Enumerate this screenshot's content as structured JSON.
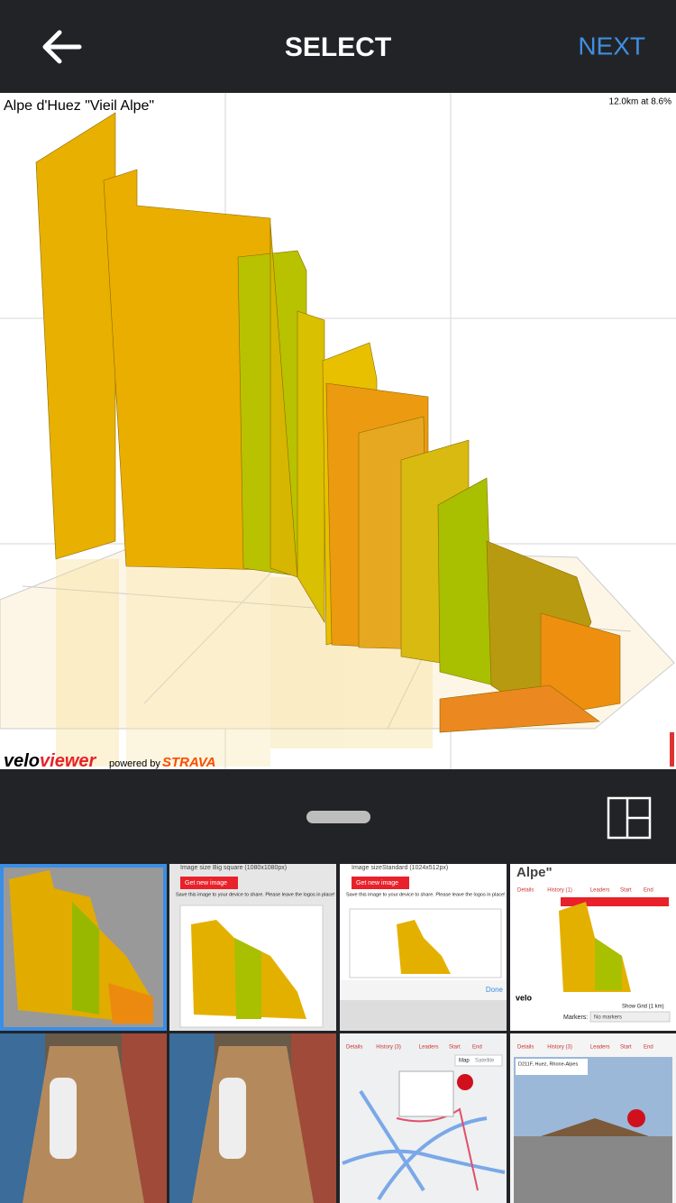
{
  "header": {
    "title": "SELECT",
    "next": "NEXT"
  },
  "preview": {
    "title": "Alpe d'Huez \"Vieil Alpe\"",
    "stats": "12.0km at 8.6%",
    "logo_velo": "velo",
    "logo_viewer": "viewer",
    "powered": "powered by",
    "strava": "STRAVA"
  },
  "thumbnails": {
    "t2": {
      "size_label": "Image size",
      "size_value": "Big square (1080x1080px)",
      "button": "Get new image",
      "note": "Save this image to your device to share. Please leave the logos in place!"
    },
    "t3": {
      "size_label": "Image size",
      "size_value": "Standard (1024x512px)",
      "button": "Get new image",
      "note": "Save this image to your device to share. Please leave the logos in place!",
      "done": "Done"
    },
    "t4": {
      "title": "Alpe\"",
      "tabs": [
        "Details",
        "History (1)",
        "Leaders",
        "Start",
        "End"
      ],
      "grid": "Show Grid (1 km)",
      "markers": "Markers:",
      "markers_value": "No markers"
    },
    "t7": {
      "tabs": [
        "Details",
        "History (3)",
        "Leaders",
        "Start",
        "End"
      ],
      "map": "Map",
      "satellite": "Satellite"
    },
    "t8": {
      "tabs": [
        "Details",
        "History (3)",
        "Leaders",
        "Start",
        "End"
      ],
      "address": "D211F, Huez, Rhone-Alpes"
    }
  }
}
